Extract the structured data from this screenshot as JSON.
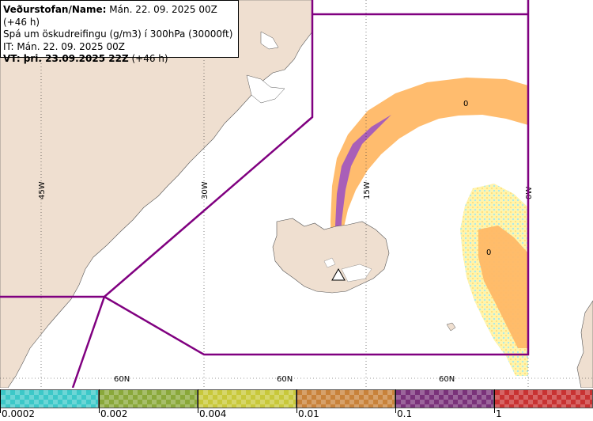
{
  "info": {
    "line1_label": "Veðurstofan/Name:",
    "line1_value": "Mán. 22. 09. 2025 00Z (+46 h)",
    "line2": "Spá um öskudreifingu (g/m3) í 300hPa (30000ft)",
    "line3": "IT: Mán. 22. 09. 2025 00Z",
    "line4_label": "VT: þri. 23.09.2025 22Z",
    "line4_value": "(+46 h)"
  },
  "grid_labels": {
    "lon_45w": "45W",
    "lon_30w": "30W",
    "lon_15w": "15W",
    "lon_0w": "0W",
    "lat_60n_a": "60N",
    "lat_60n_b": "60N",
    "lat_60n_c": "60N"
  },
  "contour_labels": {
    "a": "0",
    "b": "0"
  },
  "legend": {
    "ticks": [
      "0.0002",
      "0.002",
      "0.004",
      "0.01",
      "0.1",
      "1"
    ],
    "colors": [
      "#3cc8c8",
      "#8aa83a",
      "#c8c83a",
      "#c8823a",
      "#7a327a",
      "#c83232"
    ]
  },
  "colors": {
    "land": "#efdfd0",
    "sea": "#ffffff",
    "boundary": "#800080",
    "ash_light": "#ffe98a",
    "ash_medium": "#ffb866",
    "ash_high": "#a95fb8"
  }
}
